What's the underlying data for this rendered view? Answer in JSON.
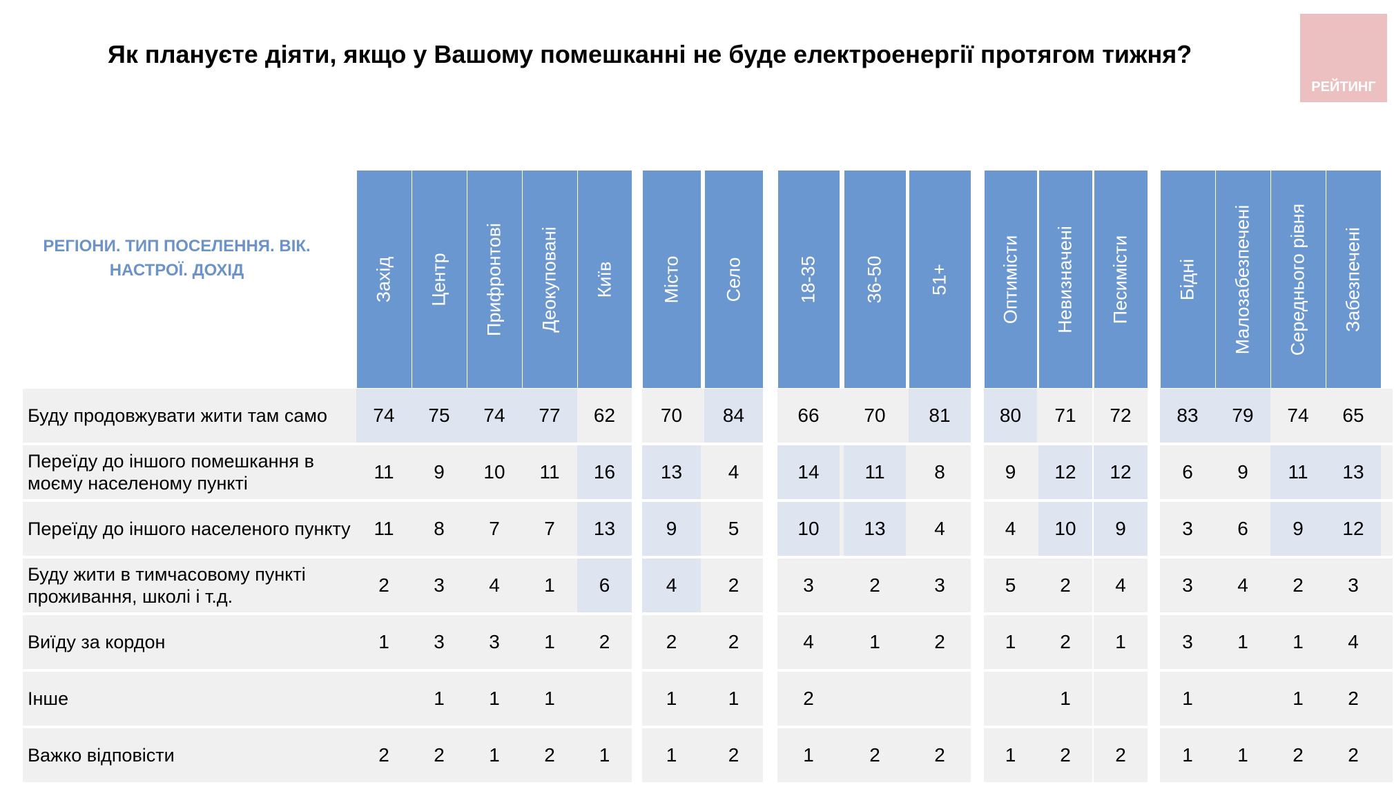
{
  "title": "Як плануєте діяти, якщо у Вашому помешканні не буде електроенергії протягом тижня?",
  "logo_text": "РЕЙТИНГ",
  "corner_label": "РЕГІОНИ. ТИП ПОСЕЛЕННЯ. ВІК. НАСТРОЇ. ДОХІД",
  "colors": {
    "header_bg": "#6b97d0",
    "row_bg": "#f0f0f0",
    "highlight_bg": "#dfe4f1",
    "corner_text": "#6b93c8",
    "logo_bg": "#ecc0c0"
  },
  "columns": [
    "Захід",
    "Центр",
    "Прифронтові",
    "Деокуповані",
    "Київ",
    "Місто",
    "Село",
    "18-35",
    "36-50",
    "51+",
    "Оптимісти",
    "Невизначені",
    "Песимісти",
    "Бідні",
    "Малозабезпечені",
    "Середнього рівня",
    "Забезпечені"
  ],
  "rows": [
    {
      "label": "Буду продовжувати жити там само",
      "values": [
        "74",
        "75",
        "74",
        "77",
        "62",
        "70",
        "84",
        "66",
        "70",
        "81",
        "80",
        "71",
        "72",
        "83",
        "79",
        "74",
        "65"
      ],
      "highlight": [
        1,
        1,
        1,
        1,
        0,
        0,
        1,
        0,
        0,
        1,
        1,
        0,
        0,
        1,
        1,
        0,
        0
      ]
    },
    {
      "label": "Переїду до іншого помешкання в моєму населеному пункті",
      "values": [
        "11",
        "9",
        "10",
        "11",
        "16",
        "13",
        "4",
        "14",
        "11",
        "8",
        "9",
        "12",
        "12",
        "6",
        "9",
        "11",
        "13"
      ],
      "highlight": [
        0,
        0,
        0,
        0,
        1,
        1,
        0,
        1,
        1,
        0,
        0,
        1,
        1,
        0,
        0,
        1,
        1
      ]
    },
    {
      "label": "Переїду до іншого населеного пункту",
      "values": [
        "11",
        "8",
        "7",
        "7",
        "13",
        "9",
        "5",
        "10",
        "13",
        "4",
        "4",
        "10",
        "9",
        "3",
        "6",
        "9",
        "12"
      ],
      "highlight": [
        0,
        0,
        0,
        0,
        1,
        1,
        0,
        1,
        1,
        0,
        0,
        1,
        1,
        0,
        0,
        1,
        1
      ]
    },
    {
      "label": "Буду жити в тимчасовому пункті проживання, школі і т.д.",
      "values": [
        "2",
        "3",
        "4",
        "1",
        "6",
        "4",
        "2",
        "3",
        "2",
        "3",
        "5",
        "2",
        "4",
        "3",
        "4",
        "2",
        "3"
      ],
      "highlight": [
        0,
        0,
        0,
        0,
        1,
        1,
        0,
        0,
        0,
        0,
        0,
        0,
        0,
        0,
        0,
        0,
        0
      ]
    },
    {
      "label": "Виїду за кордон",
      "values": [
        "1",
        "3",
        "3",
        "1",
        "2",
        "2",
        "2",
        "4",
        "1",
        "2",
        "1",
        "2",
        "1",
        "3",
        "1",
        "1",
        "4"
      ],
      "highlight": [
        0,
        0,
        0,
        0,
        0,
        0,
        0,
        0,
        0,
        0,
        0,
        0,
        0,
        0,
        0,
        0,
        0
      ]
    },
    {
      "label": "Інше",
      "values": [
        "",
        "1",
        "1",
        "1",
        "",
        "1",
        "1",
        "2",
        "",
        "",
        "",
        "1",
        "",
        "1",
        "",
        "1",
        "2"
      ],
      "highlight": [
        0,
        0,
        0,
        0,
        0,
        0,
        0,
        0,
        0,
        0,
        0,
        0,
        0,
        0,
        0,
        0,
        0
      ]
    },
    {
      "label": "Важко відповісти",
      "values": [
        "2",
        "2",
        "1",
        "2",
        "1",
        "1",
        "2",
        "1",
        "2",
        "2",
        "1",
        "2",
        "2",
        "1",
        "1",
        "2",
        "2"
      ],
      "highlight": [
        0,
        0,
        0,
        0,
        0,
        0,
        0,
        0,
        0,
        0,
        0,
        0,
        0,
        0,
        0,
        0,
        0
      ]
    }
  ]
}
